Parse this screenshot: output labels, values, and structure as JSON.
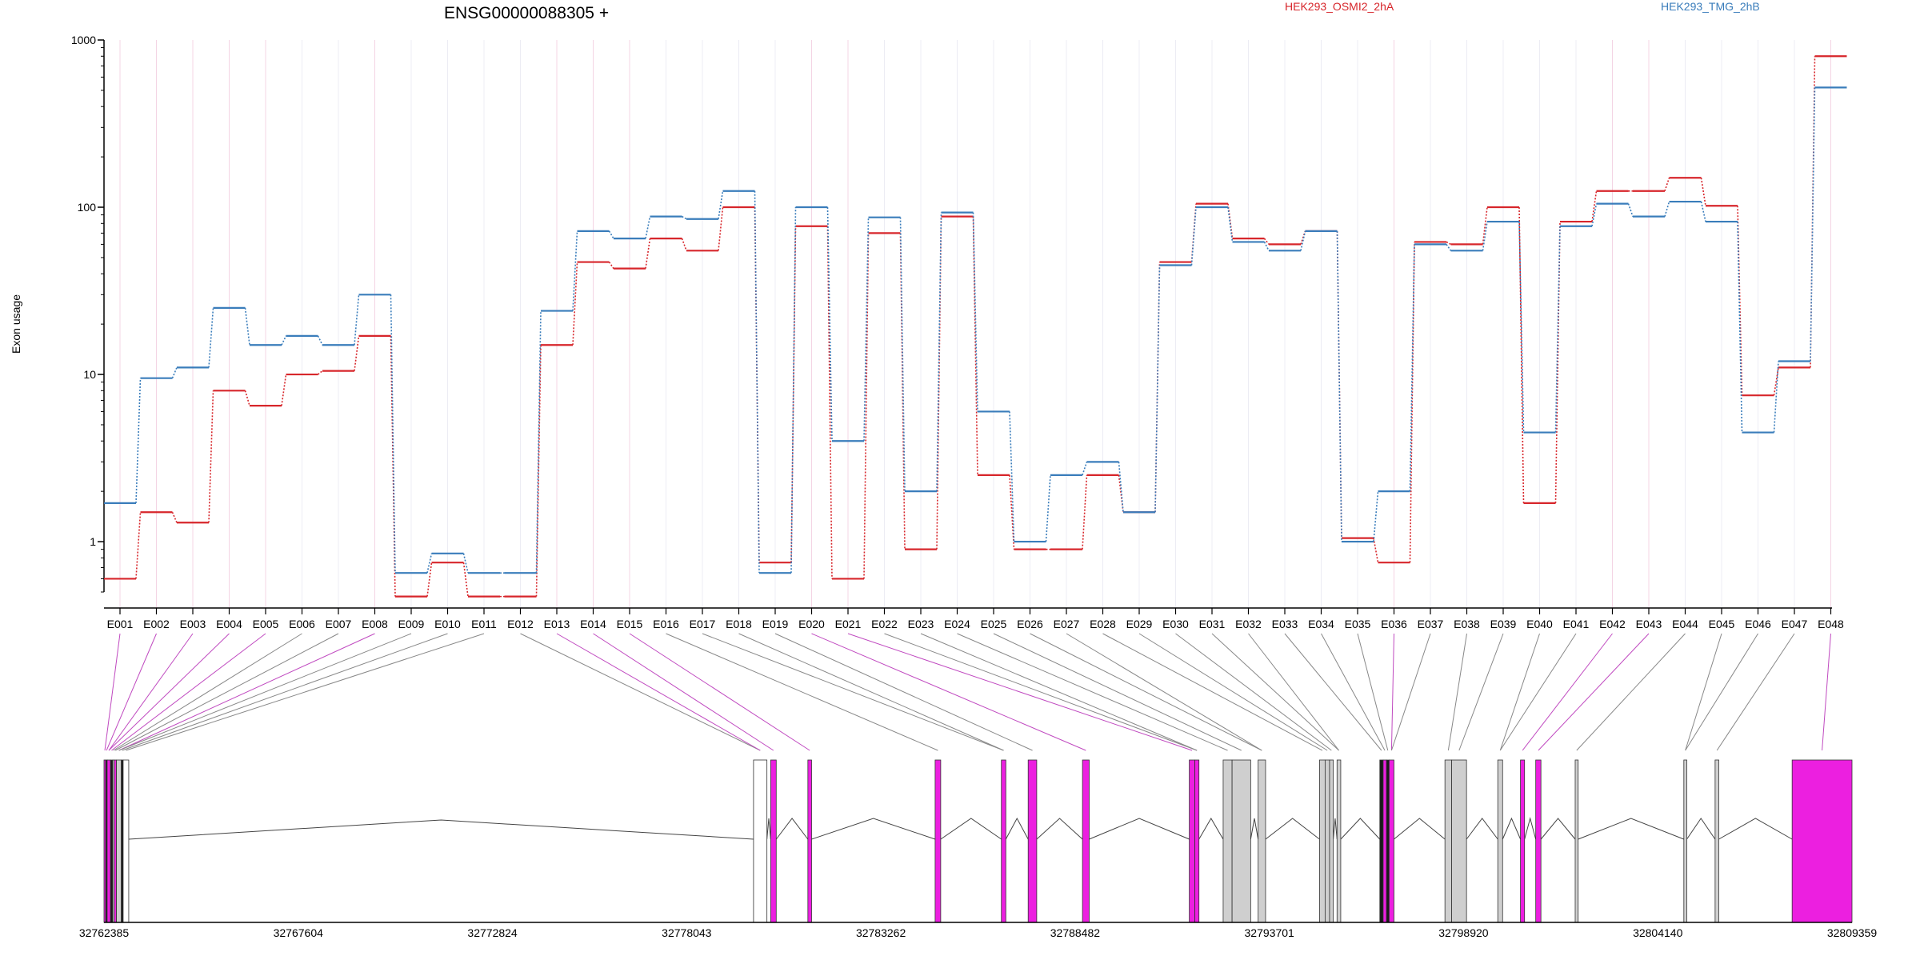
{
  "chart_data": {
    "type": "line",
    "title": "ENSG00000088305 +",
    "ylabel": "Exon usage",
    "xlabel": "",
    "y_scale": "log",
    "ylim": [
      0.5,
      1000
    ],
    "y_ticks": [
      "1",
      "10",
      "100",
      "1000"
    ],
    "grid": "vertical lines at each exon",
    "legend_position": "top",
    "categories": [
      "E001",
      "E002",
      "E003",
      "E004",
      "E005",
      "E006",
      "E007",
      "E008",
      "E009",
      "E010",
      "E011",
      "E012",
      "E013",
      "E014",
      "E015",
      "E016",
      "E017",
      "E018",
      "E019",
      "E020",
      "E021",
      "E022",
      "E023",
      "E024",
      "E025",
      "E026",
      "E027",
      "E028",
      "E029",
      "E030",
      "E031",
      "E032",
      "E033",
      "E034",
      "E035",
      "E036",
      "E037",
      "E038",
      "E039",
      "E040",
      "E041",
      "E042",
      "E043",
      "E044",
      "E045",
      "E046",
      "E047",
      "E048"
    ],
    "series": [
      {
        "name": "HEK293_OSMI2_2hA",
        "color": "#d7262b",
        "values": [
          0.6,
          1.5,
          1.3,
          8,
          6.5,
          10,
          10.5,
          17,
          0.47,
          0.75,
          0.47,
          0.47,
          15,
          47,
          43,
          65,
          55,
          100,
          0.75,
          77,
          0.6,
          70,
          0.9,
          88,
          2.5,
          0.9,
          0.9,
          2.5,
          1.5,
          47,
          105,
          65,
          60,
          72,
          1.05,
          0.75,
          62,
          60,
          100,
          1.7,
          82,
          125,
          125,
          150,
          102,
          7.5,
          11,
          800
        ]
      },
      {
        "name": "HEK293_TMG_2hB",
        "color": "#3a7dbb",
        "values": [
          1.7,
          9.5,
          11,
          25,
          15,
          17,
          15,
          30,
          0.65,
          0.85,
          0.65,
          0.65,
          24,
          72,
          65,
          88,
          85,
          125,
          0.65,
          100,
          4,
          87,
          2,
          93,
          6,
          1,
          2.5,
          3,
          1.5,
          45,
          100,
          62,
          55,
          72,
          1,
          2,
          60,
          55,
          82,
          4.5,
          77,
          105,
          88,
          108,
          82,
          4.5,
          12,
          520
        ]
      }
    ],
    "exon_tick_colors": [
      "#c04ac0",
      "#c04ac0",
      "#c04ac0",
      "#c04ac0",
      "#c04ac0",
      "#888888",
      "#888888",
      "#c04ac0",
      "#888888",
      "#888888",
      "#888888",
      "#888888",
      "#c04ac0",
      "#c04ac0",
      "#c04ac0",
      "#888888",
      "#888888",
      "#888888",
      "#888888",
      "#c04ac0",
      "#c04ac0",
      "#888888",
      "#888888",
      "#888888",
      "#888888",
      "#888888",
      "#888888",
      "#888888",
      "#888888",
      "#888888",
      "#888888",
      "#888888",
      "#888888",
      "#888888",
      "#888888",
      "#c04ac0",
      "#888888",
      "#888888",
      "#888888",
      "#888888",
      "#888888",
      "#c04ac0",
      "#c04ac0",
      "#888888",
      "#888888",
      "#888888",
      "#888888",
      "#c04ac0"
    ],
    "genomic_axis": {
      "start": 32762385,
      "end": 32809359,
      "tick_labels": [
        "32762385",
        "32767604",
        "32772824",
        "32778043",
        "32783262",
        "32788482",
        "32793701",
        "32798920",
        "32804140",
        "32809359"
      ]
    },
    "gene_model": {
      "exons": [
        {
          "start": 32762385,
          "end": 32762430,
          "type": "magenta"
        },
        {
          "start": 32762435,
          "end": 32762470,
          "type": "black"
        },
        {
          "start": 32762470,
          "end": 32762560,
          "type": "magenta"
        },
        {
          "start": 32762560,
          "end": 32762620,
          "type": "black"
        },
        {
          "start": 32762620,
          "end": 32762660,
          "type": "grey"
        },
        {
          "start": 32762660,
          "end": 32762720,
          "type": "magenta"
        },
        {
          "start": 32762720,
          "end": 32762850,
          "type": "grey"
        },
        {
          "start": 32762850,
          "end": 32762900,
          "type": "black"
        },
        {
          "start": 32762900,
          "end": 32763050,
          "type": "white"
        },
        {
          "start": 32779840,
          "end": 32780200,
          "type": "white"
        },
        {
          "start": 32780300,
          "end": 32780450,
          "type": "magenta"
        },
        {
          "start": 32781300,
          "end": 32781400,
          "type": "magenta"
        },
        {
          "start": 32784720,
          "end": 32784870,
          "type": "magenta"
        },
        {
          "start": 32786500,
          "end": 32786620,
          "type": "magenta"
        },
        {
          "start": 32787220,
          "end": 32787450,
          "type": "magenta"
        },
        {
          "start": 32788680,
          "end": 32788860,
          "type": "magenta"
        },
        {
          "start": 32791550,
          "end": 32791700,
          "type": "magenta"
        },
        {
          "start": 32791700,
          "end": 32791810,
          "type": "magenta"
        },
        {
          "start": 32792460,
          "end": 32792700,
          "type": "grey"
        },
        {
          "start": 32792700,
          "end": 32793200,
          "type": "grey"
        },
        {
          "start": 32793400,
          "end": 32793600,
          "type": "grey"
        },
        {
          "start": 32795050,
          "end": 32795200,
          "type": "grey"
        },
        {
          "start": 32795200,
          "end": 32795320,
          "type": "grey"
        },
        {
          "start": 32795320,
          "end": 32795420,
          "type": "grey"
        },
        {
          "start": 32795520,
          "end": 32795620,
          "type": "grey"
        },
        {
          "start": 32796670,
          "end": 32796760,
          "type": "black"
        },
        {
          "start": 32796760,
          "end": 32796850,
          "type": "magenta"
        },
        {
          "start": 32796850,
          "end": 32796920,
          "type": "black"
        },
        {
          "start": 32796920,
          "end": 32797050,
          "type": "magenta"
        },
        {
          "start": 32798420,
          "end": 32798600,
          "type": "grey"
        },
        {
          "start": 32798600,
          "end": 32799000,
          "type": "grey"
        },
        {
          "start": 32799840,
          "end": 32799970,
          "type": "grey"
        },
        {
          "start": 32800450,
          "end": 32800560,
          "type": "magenta"
        },
        {
          "start": 32800860,
          "end": 32801000,
          "type": "magenta"
        },
        {
          "start": 32801920,
          "end": 32802000,
          "type": "grey"
        },
        {
          "start": 32804840,
          "end": 32804920,
          "type": "grey"
        },
        {
          "start": 32805680,
          "end": 32805780,
          "type": "grey"
        },
        {
          "start": 32807750,
          "end": 32809359,
          "type": "magenta"
        }
      ]
    }
  }
}
